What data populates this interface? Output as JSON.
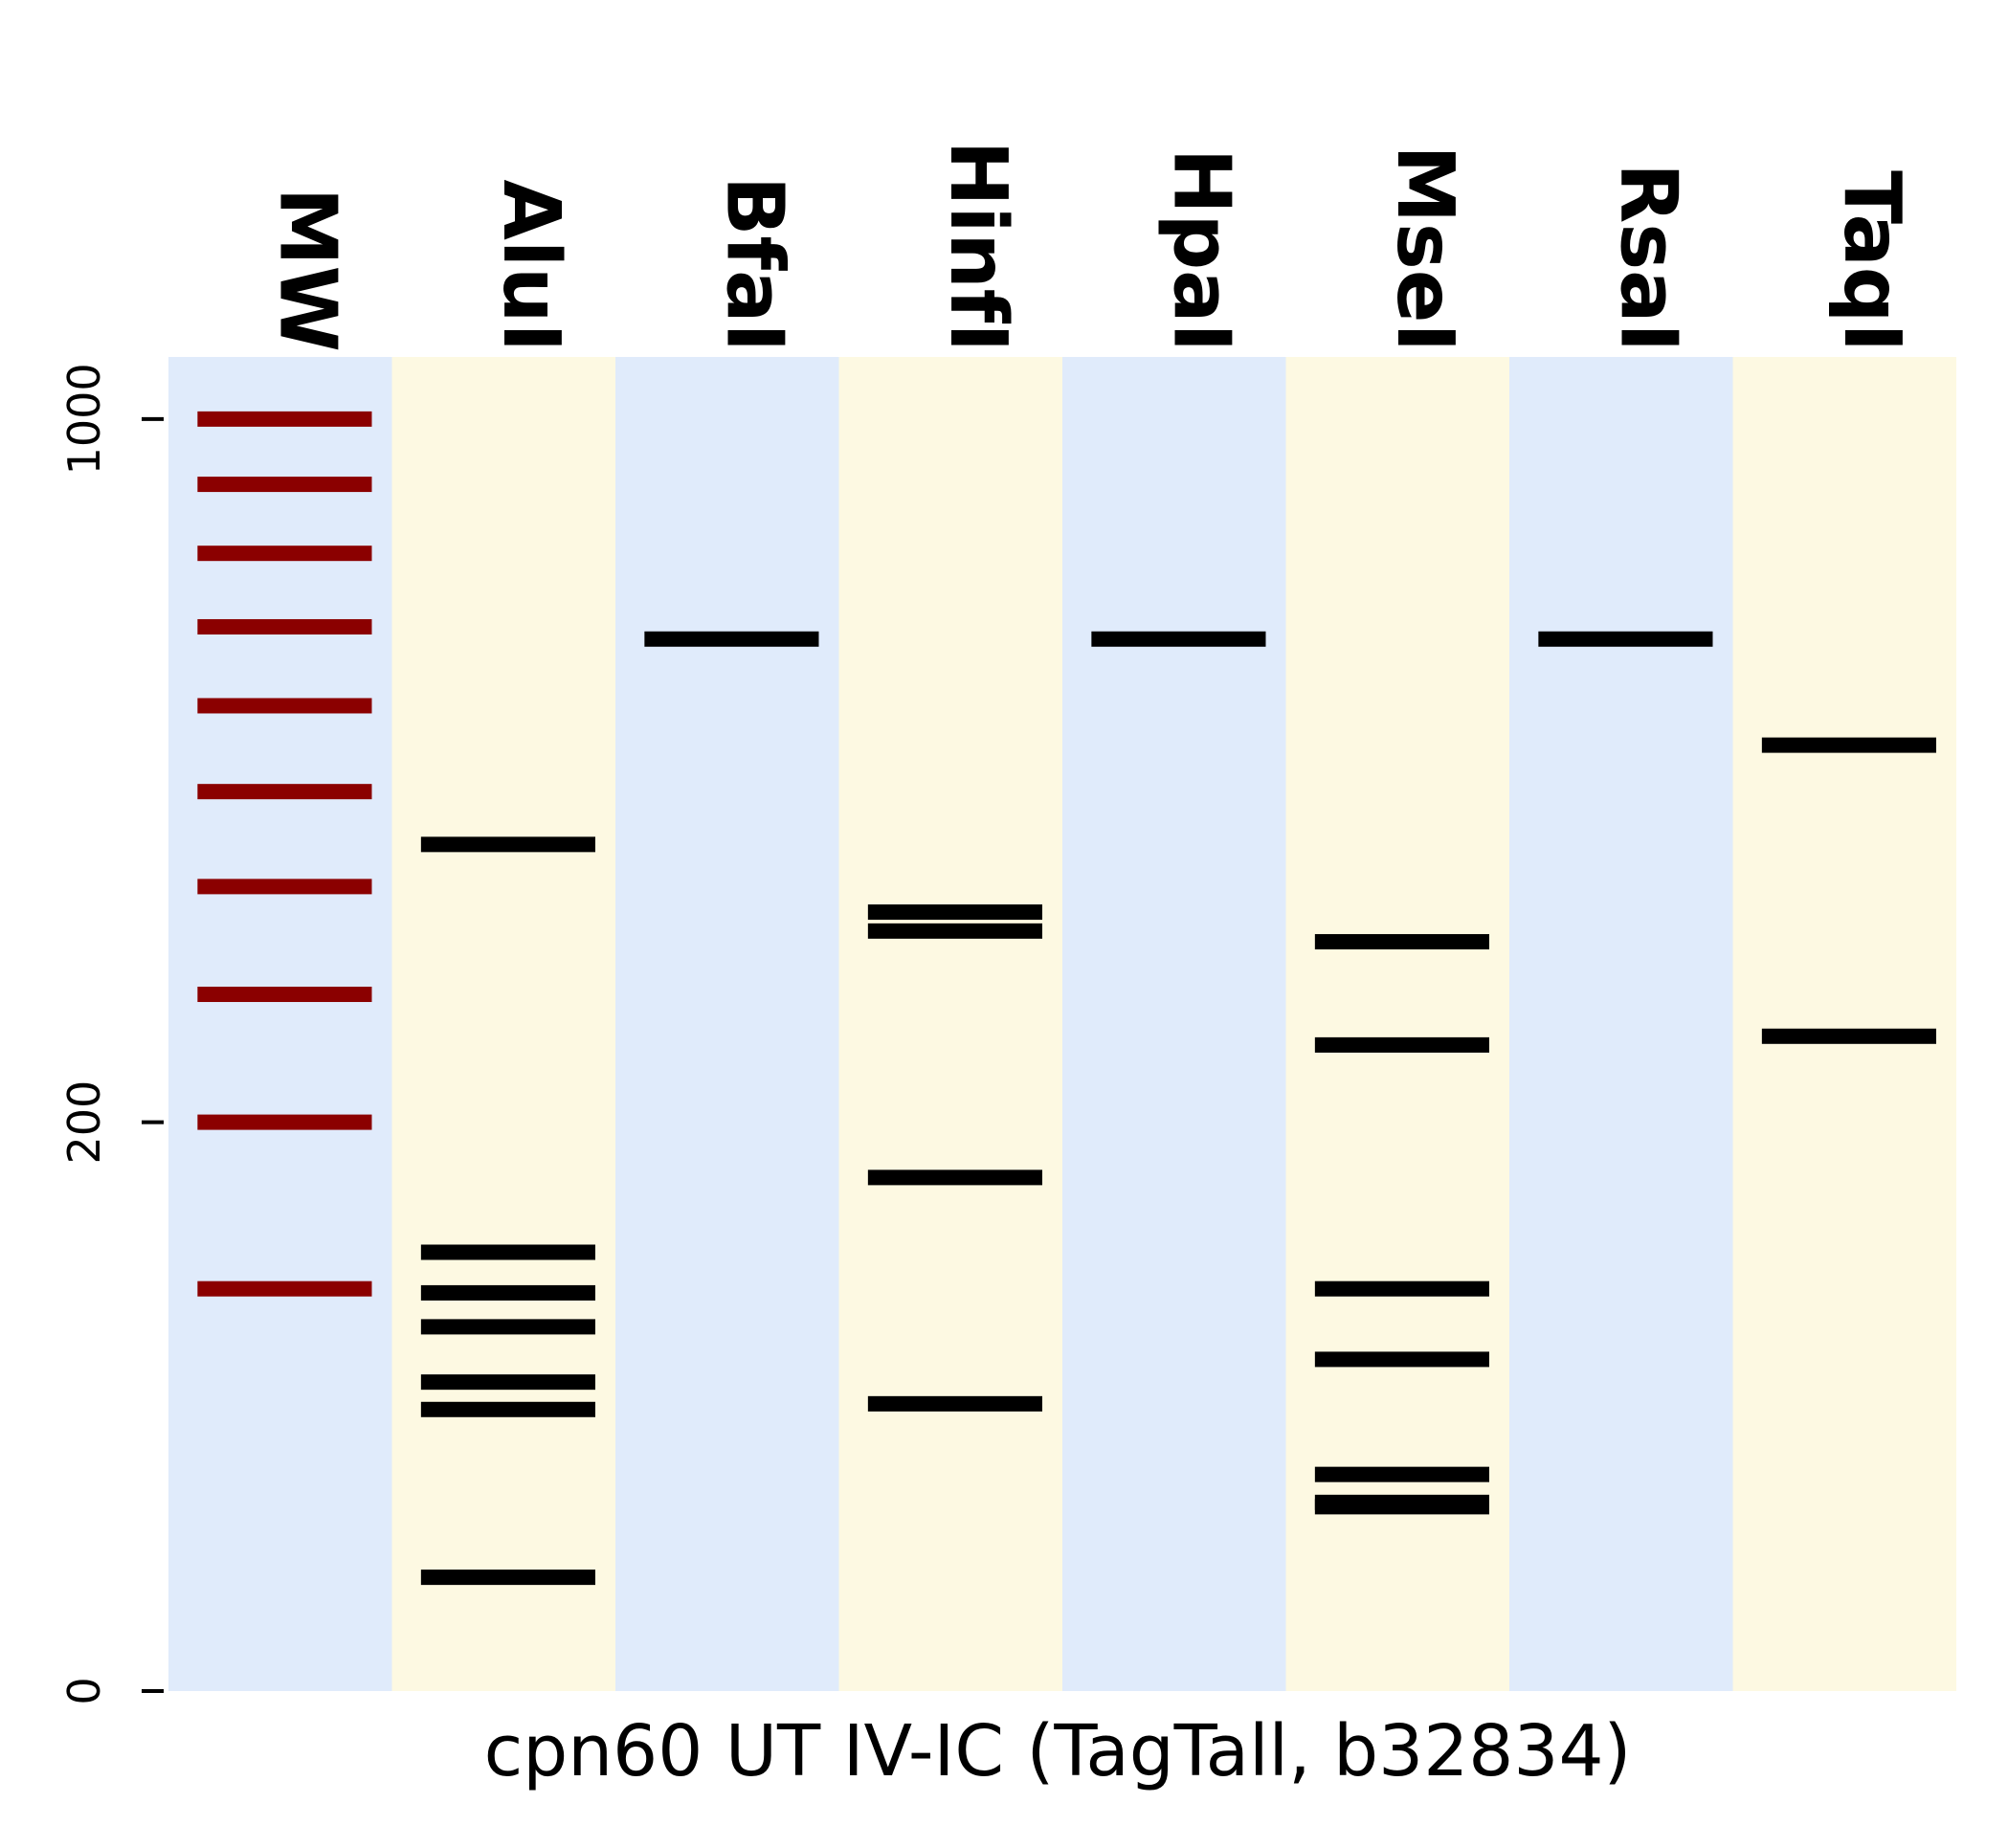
{
  "chart_data": {
    "type": "gel",
    "xlabel": "cpn60 UT IV-IC (TagTall, b32834)",
    "y_scale": "sqrt",
    "ylim": [
      0,
      1100
    ],
    "y_ticks": [
      {
        "value": 0,
        "label": "0"
      },
      {
        "value": 200,
        "label": "200"
      },
      {
        "value": 1000,
        "label": "1000"
      }
    ],
    "lanes": [
      {
        "name": "MW",
        "marker": true,
        "bands": [
          1000,
          900,
          800,
          700,
          600,
          500,
          400,
          300,
          200,
          100
        ]
      },
      {
        "name": "AluI",
        "bands": [
          443,
          119,
          98,
          82,
          59,
          49,
          8
        ]
      },
      {
        "name": "BfaI",
        "bands": [
          684
        ]
      },
      {
        "name": "HinfI",
        "bands": [
          375,
          357,
          163,
          51
        ]
      },
      {
        "name": "HpaI",
        "bands": [
          684
        ]
      },
      {
        "name": "MseI",
        "bands": [
          347,
          258,
          100,
          68,
          29,
          22,
          21
        ]
      },
      {
        "name": "RsaI",
        "bands": [
          684
        ]
      },
      {
        "name": "TaqI",
        "bands": [
          553,
          265
        ]
      }
    ],
    "colors": {
      "lane_blue": "#e0ebfb",
      "lane_yellow": "#fdf9e2",
      "marker_band": "#8b0000",
      "sample_band": "#000000"
    }
  }
}
